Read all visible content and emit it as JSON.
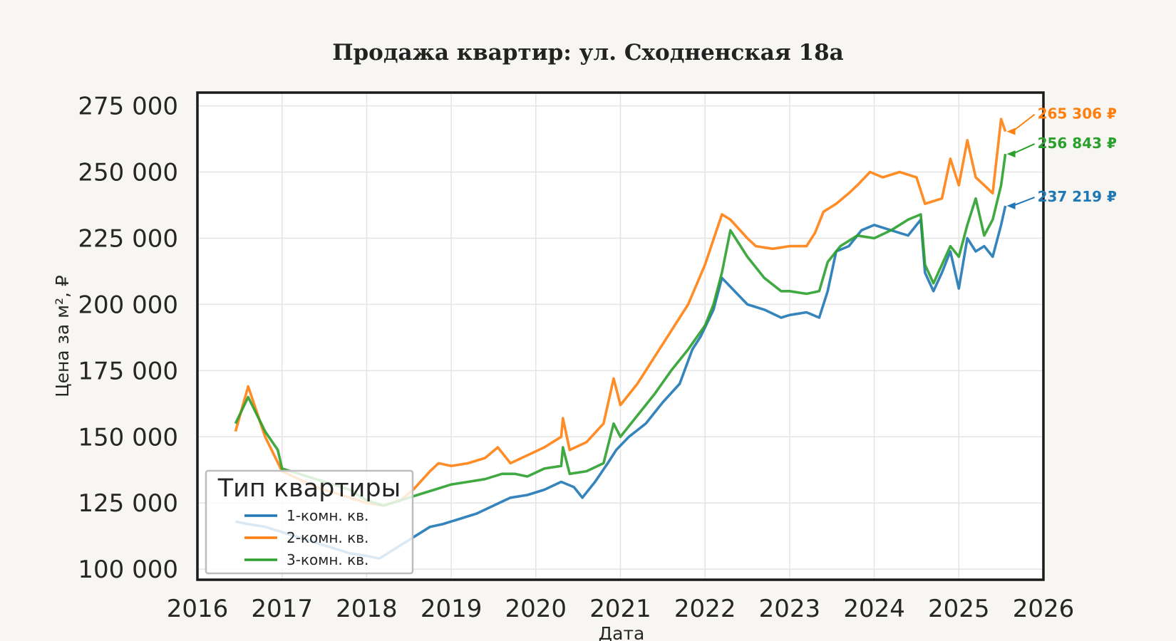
{
  "chart_data": {
    "type": "line",
    "title": "Продажа квартир: ул. Сходненская 18а",
    "xlabel": "Дата",
    "ylabel": "Цена за м², ₽",
    "xlim": [
      2016,
      2026
    ],
    "ylim": [
      96000,
      280000
    ],
    "x_ticks": [
      2016,
      2017,
      2018,
      2019,
      2020,
      2021,
      2022,
      2023,
      2024,
      2025,
      2026
    ],
    "y_ticks": [
      100000,
      125000,
      150000,
      175000,
      200000,
      225000,
      250000,
      275000
    ],
    "y_tick_labels": [
      "100 000",
      "125 000",
      "150 000",
      "175 000",
      "200 000",
      "225 000",
      "250 000",
      "275 000"
    ],
    "grid": true,
    "legend": {
      "title": "Тип квартиры",
      "placement": "bottom-left"
    },
    "series": [
      {
        "name": "1-комн. кв.",
        "color": "#1f77b4",
        "end_label": "237 219 ₽",
        "x": [
          2016.45,
          2016.6,
          2016.8,
          2017.0,
          2017.2,
          2017.4,
          2017.6,
          2017.8,
          2018.0,
          2018.15,
          2018.3,
          2018.45,
          2018.6,
          2018.75,
          2018.9,
          2019.1,
          2019.3,
          2019.5,
          2019.7,
          2019.9,
          2020.1,
          2020.3,
          2020.45,
          2020.55,
          2020.7,
          2020.85,
          2020.95,
          2021.1,
          2021.3,
          2021.5,
          2021.7,
          2021.85,
          2021.95,
          2022.1,
          2022.2,
          2022.35,
          2022.5,
          2022.7,
          2022.9,
          2023.0,
          2023.2,
          2023.35,
          2023.45,
          2023.55,
          2023.7,
          2023.85,
          2024.0,
          2024.2,
          2024.4,
          2024.55,
          2024.6,
          2024.7,
          2024.8,
          2024.9,
          2025.0,
          2025.1,
          2025.2,
          2025.3,
          2025.4,
          2025.5,
          2025.55
        ],
        "values": [
          118000,
          117000,
          116000,
          114000,
          112000,
          110000,
          108000,
          106000,
          105000,
          104000,
          107000,
          110000,
          113000,
          116000,
          117000,
          119000,
          121000,
          124000,
          127000,
          128000,
          130000,
          133000,
          131000,
          127000,
          133000,
          140000,
          145000,
          150000,
          155000,
          163000,
          170000,
          183000,
          188000,
          198000,
          210000,
          205000,
          200000,
          198000,
          195000,
          196000,
          197000,
          195000,
          205000,
          220000,
          222000,
          228000,
          230000,
          228000,
          226000,
          232000,
          212000,
          205000,
          212000,
          220000,
          206000,
          225000,
          220000,
          222000,
          218000,
          230000,
          237219
        ]
      },
      {
        "name": "2-комн. кв.",
        "color": "#ff7f0e",
        "end_label": "265 306 ₽",
        "x": [
          2016.45,
          2016.6,
          2016.8,
          2017.0,
          2017.2,
          2017.4,
          2017.6,
          2017.8,
          2018.0,
          2018.2,
          2018.4,
          2018.55,
          2018.75,
          2018.85,
          2019.0,
          2019.2,
          2019.4,
          2019.55,
          2019.7,
          2019.9,
          2020.1,
          2020.3,
          2020.32,
          2020.4,
          2020.6,
          2020.8,
          2020.92,
          2021.0,
          2021.2,
          2021.4,
          2021.6,
          2021.8,
          2022.0,
          2022.2,
          2022.3,
          2022.5,
          2022.6,
          2022.8,
          2023.0,
          2023.2,
          2023.3,
          2023.4,
          2023.55,
          2023.7,
          2023.8,
          2023.95,
          2024.1,
          2024.3,
          2024.5,
          2024.6,
          2024.8,
          2024.9,
          2025.0,
          2025.1,
          2025.2,
          2025.3,
          2025.4,
          2025.5,
          2025.55
        ],
        "values": [
          152000,
          169000,
          150000,
          137000,
          134000,
          131000,
          129000,
          127000,
          125000,
          124000,
          126000,
          130000,
          137000,
          140000,
          139000,
          140000,
          142000,
          146000,
          140000,
          143000,
          146000,
          150000,
          157000,
          145000,
          148000,
          155000,
          172000,
          162000,
          170000,
          180000,
          190000,
          200000,
          215000,
          234000,
          232000,
          225000,
          222000,
          221000,
          222000,
          222000,
          227000,
          235000,
          238000,
          242000,
          245000,
          250000,
          248000,
          250000,
          248000,
          238000,
          240000,
          255000,
          245000,
          262000,
          248000,
          245000,
          242000,
          270000,
          265306
        ]
      },
      {
        "name": "3-комн. кв.",
        "color": "#2ca02c",
        "end_label": "256 843 ₽",
        "x": [
          2016.45,
          2016.6,
          2016.8,
          2016.95,
          2017.0,
          2017.2,
          2017.4,
          2017.6,
          2017.8,
          2018.0,
          2018.2,
          2018.4,
          2018.6,
          2018.8,
          2019.0,
          2019.2,
          2019.4,
          2019.6,
          2019.75,
          2019.9,
          2020.1,
          2020.3,
          2020.32,
          2020.4,
          2020.6,
          2020.8,
          2020.92,
          2021.0,
          2021.2,
          2021.4,
          2021.6,
          2021.8,
          2022.0,
          2022.1,
          2022.2,
          2022.3,
          2022.5,
          2022.7,
          2022.9,
          2023.0,
          2023.2,
          2023.35,
          2023.45,
          2023.6,
          2023.8,
          2024.0,
          2024.2,
          2024.4,
          2024.55,
          2024.6,
          2024.7,
          2024.8,
          2024.9,
          2025.0,
          2025.1,
          2025.2,
          2025.3,
          2025.4,
          2025.5,
          2025.55
        ],
        "values": [
          155000,
          165000,
          152000,
          145000,
          138000,
          136000,
          134000,
          132000,
          130000,
          126000,
          124000,
          126000,
          128000,
          130000,
          132000,
          133000,
          134000,
          136000,
          136000,
          135000,
          138000,
          139000,
          146000,
          136000,
          137000,
          140000,
          155000,
          150000,
          158000,
          166000,
          175000,
          183000,
          192000,
          200000,
          212000,
          228000,
          218000,
          210000,
          205000,
          205000,
          204000,
          205000,
          216000,
          222000,
          226000,
          225000,
          228000,
          232000,
          234000,
          215000,
          208000,
          215000,
          222000,
          218000,
          230000,
          240000,
          226000,
          232000,
          245000,
          256843
        ]
      }
    ]
  }
}
